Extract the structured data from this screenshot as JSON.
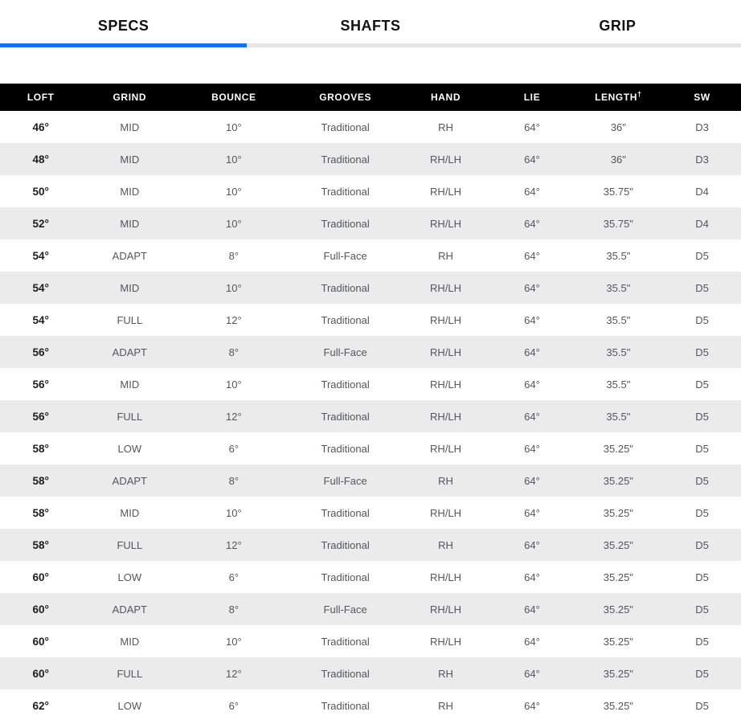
{
  "colors": {
    "accent_blue": "#1a6ee8",
    "inactive_underline": "#e6e6e6",
    "header_bg": "#000000",
    "header_text": "#ffffff",
    "row_alt_bg": "#ebebeb",
    "cell_text": "#54565a",
    "loft_text": "#1d1d1f"
  },
  "tabs": [
    {
      "label": "SPECS",
      "active": true
    },
    {
      "label": "SHAFTS",
      "active": false
    },
    {
      "label": "GRIP",
      "active": false
    }
  ],
  "table": {
    "columns": [
      {
        "key": "loft",
        "label": "LOFT",
        "sup": ""
      },
      {
        "key": "grind",
        "label": "GRIND",
        "sup": ""
      },
      {
        "key": "bounce",
        "label": "BOUNCE",
        "sup": ""
      },
      {
        "key": "grooves",
        "label": "GROOVES",
        "sup": ""
      },
      {
        "key": "hand",
        "label": "HAND",
        "sup": ""
      },
      {
        "key": "lie",
        "label": "LIE",
        "sup": ""
      },
      {
        "key": "length",
        "label": "LENGTH",
        "sup": "†"
      },
      {
        "key": "sw",
        "label": "SW",
        "sup": ""
      }
    ],
    "rows": [
      [
        "46°",
        "MID",
        "10°",
        "Traditional",
        "RH",
        "64°",
        "36\"",
        "D3"
      ],
      [
        "48°",
        "MID",
        "10°",
        "Traditional",
        "RH/LH",
        "64°",
        "36\"",
        "D3"
      ],
      [
        "50°",
        "MID",
        "10°",
        "Traditional",
        "RH/LH",
        "64°",
        "35.75\"",
        "D4"
      ],
      [
        "52°",
        "MID",
        "10°",
        "Traditional",
        "RH/LH",
        "64°",
        "35.75\"",
        "D4"
      ],
      [
        "54°",
        "ADAPT",
        "8°",
        "Full-Face",
        "RH",
        "64°",
        "35.5\"",
        "D5"
      ],
      [
        "54°",
        "MID",
        "10°",
        "Traditional",
        "RH/LH",
        "64°",
        "35.5\"",
        "D5"
      ],
      [
        "54°",
        "FULL",
        "12°",
        "Traditional",
        "RH/LH",
        "64°",
        "35.5\"",
        "D5"
      ],
      [
        "56°",
        "ADAPT",
        "8°",
        "Full-Face",
        "RH/LH",
        "64°",
        "35.5\"",
        "D5"
      ],
      [
        "56°",
        "MID",
        "10°",
        "Traditional",
        "RH/LH",
        "64°",
        "35.5\"",
        "D5"
      ],
      [
        "56°",
        "FULL",
        "12°",
        "Traditional",
        "RH/LH",
        "64°",
        "35.5\"",
        "D5"
      ],
      [
        "58°",
        "LOW",
        "6°",
        "Traditional",
        "RH/LH",
        "64°",
        "35.25\"",
        "D5"
      ],
      [
        "58°",
        "ADAPT",
        "8°",
        "Full-Face",
        "RH",
        "64°",
        "35.25\"",
        "D5"
      ],
      [
        "58°",
        "MID",
        "10°",
        "Traditional",
        "RH/LH",
        "64°",
        "35.25\"",
        "D5"
      ],
      [
        "58°",
        "FULL",
        "12°",
        "Traditional",
        "RH",
        "64°",
        "35.25\"",
        "D5"
      ],
      [
        "60°",
        "LOW",
        "6°",
        "Traditional",
        "RH/LH",
        "64°",
        "35.25\"",
        "D5"
      ],
      [
        "60°",
        "ADAPT",
        "8°",
        "Full-Face",
        "RH/LH",
        "64°",
        "35.25\"",
        "D5"
      ],
      [
        "60°",
        "MID",
        "10°",
        "Traditional",
        "RH/LH",
        "64°",
        "35.25\"",
        "D5"
      ],
      [
        "60°",
        "FULL",
        "12°",
        "Traditional",
        "RH",
        "64°",
        "35.25\"",
        "D5"
      ],
      [
        "62°",
        "LOW",
        "6°",
        "Traditional",
        "RH",
        "64°",
        "35.25\"",
        "D5"
      ]
    ]
  }
}
